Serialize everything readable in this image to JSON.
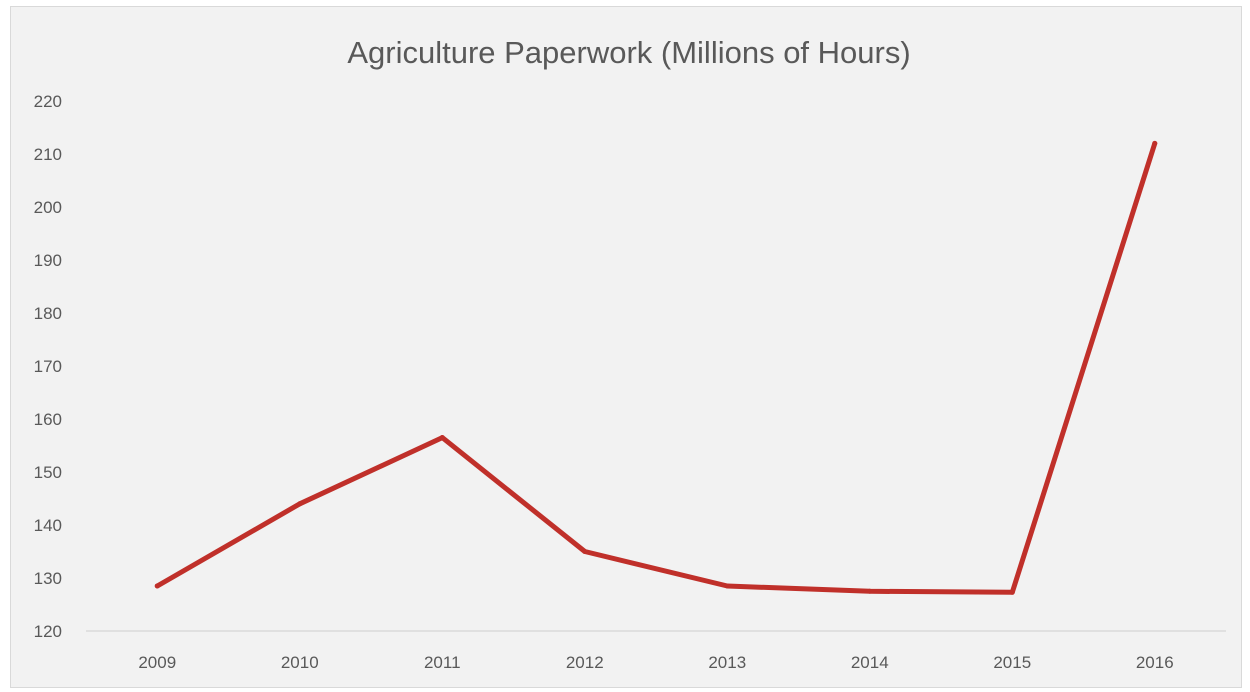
{
  "chart_data": {
    "type": "line",
    "title": "Agriculture Paperwork (Millions of Hours)",
    "xlabel": "",
    "ylabel": "",
    "categories": [
      "2009",
      "2010",
      "2011",
      "2012",
      "2013",
      "2014",
      "2015",
      "2016"
    ],
    "series": [
      {
        "values": [
          128.5,
          144,
          156.5,
          135,
          128.5,
          127.5,
          127.3,
          212
        ],
        "color": "#c0302a"
      }
    ],
    "ylim": [
      120,
      220
    ],
    "yticks": [
      "120",
      "130",
      "140",
      "150",
      "160",
      "170",
      "180",
      "190",
      "200",
      "210",
      "220"
    ],
    "grid": false,
    "legend": "none"
  }
}
